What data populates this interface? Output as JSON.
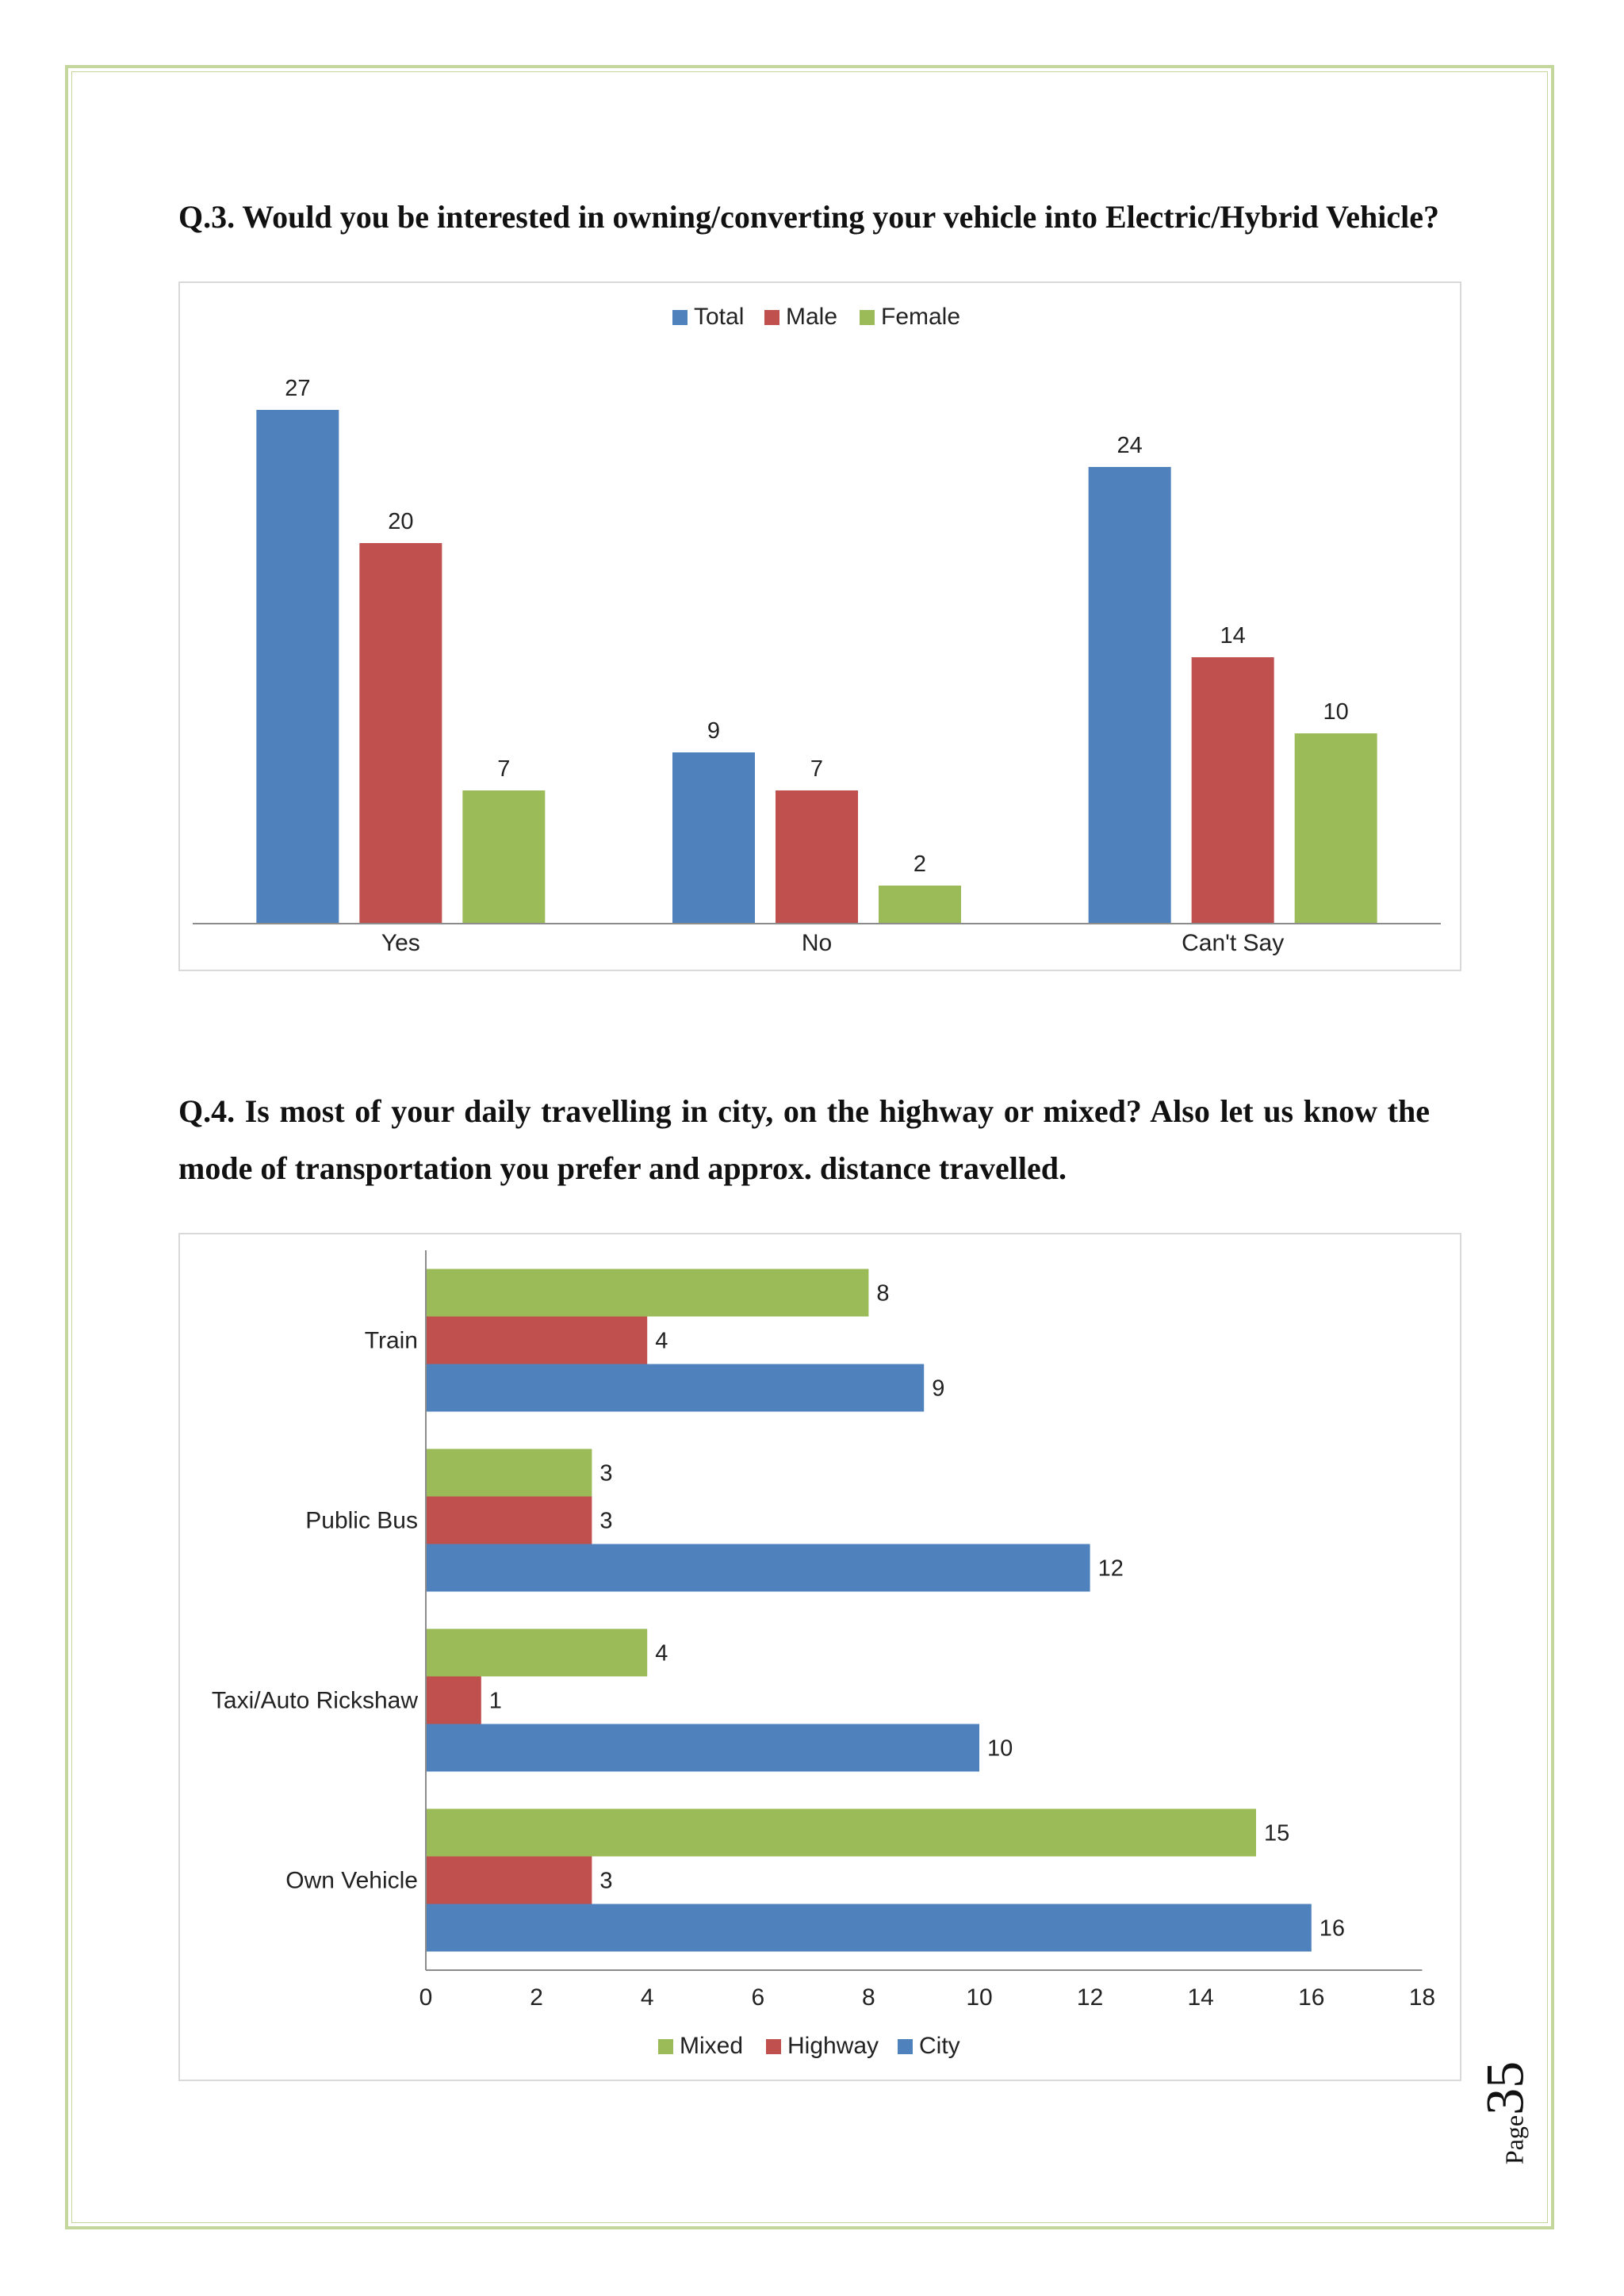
{
  "page": {
    "q3_title": "Q.3. Would you be interested in owning/converting your vehicle into Electric/Hybrid Vehicle?",
    "q4_title": "Q.4. Is most of your daily travelling in city, on the highway or mixed? Also let us know the mode of transportation you prefer and approx. distance travelled.",
    "page_word": "Page",
    "page_number": "35"
  },
  "colors": {
    "border": "#c3d69b",
    "blue": "#4f81bd",
    "red": "#c0504d",
    "green": "#9bbb59"
  },
  "chart_data": [
    {
      "type": "bar",
      "orientation": "vertical",
      "categories": [
        "Yes",
        "No",
        "Can't Say"
      ],
      "series": [
        {
          "name": "Total",
          "color": "#4f81bd",
          "values": [
            27,
            9,
            24
          ]
        },
        {
          "name": "Male",
          "color": "#c0504d",
          "values": [
            20,
            7,
            14
          ]
        },
        {
          "name": "Female",
          "color": "#9bbb59",
          "values": [
            7,
            2,
            10
          ]
        }
      ],
      "ylim": [
        0,
        30
      ],
      "legend": "top",
      "data_labels": true,
      "grid": false
    },
    {
      "type": "bar",
      "orientation": "horizontal",
      "categories": [
        "Own Vehicle",
        "Taxi/Auto Rickshaw",
        "Public Bus",
        "Train"
      ],
      "series": [
        {
          "name": "City",
          "color": "#4f81bd",
          "values": [
            16,
            10,
            12,
            9
          ]
        },
        {
          "name": "Highway",
          "color": "#c0504d",
          "values": [
            3,
            1,
            3,
            4
          ]
        },
        {
          "name": "Mixed",
          "color": "#9bbb59",
          "values": [
            15,
            4,
            3,
            8
          ]
        }
      ],
      "legend_order": [
        "Mixed",
        "Highway",
        "City"
      ],
      "xlim": [
        0,
        18
      ],
      "xticks": [
        "0",
        "2",
        "4",
        "6",
        "8",
        "10",
        "12",
        "14",
        "16",
        "18"
      ],
      "legend": "bottom",
      "data_labels": true,
      "grid": false
    }
  ]
}
